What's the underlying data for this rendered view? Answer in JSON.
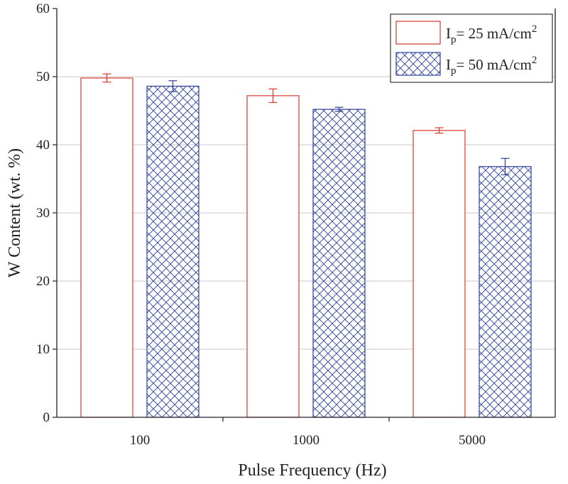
{
  "chart_data": {
    "type": "bar",
    "title": "",
    "xlabel": "Pulse Frequency (Hz)",
    "ylabel": "W Content (wt. %)",
    "categories": [
      "100",
      "1000",
      "5000"
    ],
    "ylim": [
      0,
      60
    ],
    "yticks": [
      0,
      10,
      20,
      30,
      40,
      50,
      60
    ],
    "grid": true,
    "legend_position": "top-right",
    "series": [
      {
        "name_main": "I",
        "name_sub": "p",
        "name_rest": "= 25 mA/cm",
        "name_sup": "2",
        "values": [
          49.8,
          47.2,
          42.1
        ],
        "errors": [
          0.6,
          1.0,
          0.4
        ],
        "color": "#d9352b",
        "fill": "none"
      },
      {
        "name_main": "I",
        "name_sub": "p",
        "name_rest": "= 50 mA/cm",
        "name_sup": "2",
        "values": [
          48.6,
          45.2,
          36.8
        ],
        "errors": [
          0.8,
          0.3,
          1.2
        ],
        "color": "#2c3f9a",
        "fill": "crosshatch"
      }
    ]
  }
}
